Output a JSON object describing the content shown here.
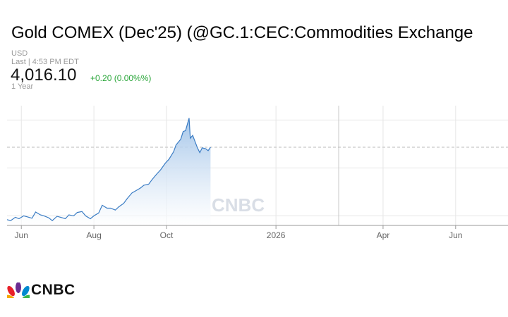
{
  "header": {
    "title": "Gold COMEX (Dec'25) (@GC.1:CEC:Commodities Exchange",
    "currency": "USD",
    "last_time": "Last | 4:53 PM EDT",
    "price": "4,016.10",
    "change": "+0.20 (0.00%%)",
    "range": "1 Year"
  },
  "colors": {
    "line": "#3a7cc4",
    "fill_top": "#9fc2e8",
    "change": "#2aa63a",
    "grid": "#e6e6e6"
  },
  "watermark": {
    "text": "CNBC"
  },
  "logo": {
    "icon": "peacock-icon",
    "text": "CNBC"
  },
  "chart_data": {
    "type": "area",
    "title": "",
    "xlabel": "",
    "ylabel": "",
    "x_tick_labels": [
      "Jun",
      "Aug",
      "Oct",
      "2026",
      "Apr",
      "Jun"
    ],
    "x_tick_dates": [
      "2025-06-01",
      "2025-08-01",
      "2025-10-01",
      "2026-01-01",
      "2026-04-01",
      "2026-06-01"
    ],
    "xlim": [
      "2025-05-20",
      "2026-07-15"
    ],
    "ylim": [
      3200,
      4450
    ],
    "grid": true,
    "y_axis_labels_shown": false,
    "previous_close_line": 4016,
    "series": [
      {
        "x": [
          "2025-05-20",
          "2025-05-23",
          "2025-05-27",
          "2025-05-30",
          "2025-06-03",
          "2025-06-06",
          "2025-06-10",
          "2025-06-13",
          "2025-06-17",
          "2025-06-20",
          "2025-06-24",
          "2025-06-27",
          "2025-07-01",
          "2025-07-04",
          "2025-07-08",
          "2025-07-11",
          "2025-07-15",
          "2025-07-18",
          "2025-07-22",
          "2025-07-25",
          "2025-07-29",
          "2025-08-01",
          "2025-08-05",
          "2025-08-08",
          "2025-08-12",
          "2025-08-15",
          "2025-08-19",
          "2025-08-22",
          "2025-08-26",
          "2025-08-29",
          "2025-09-02",
          "2025-09-05",
          "2025-09-09",
          "2025-09-12",
          "2025-09-16",
          "2025-09-19",
          "2025-09-23",
          "2025-09-26",
          "2025-09-30",
          "2025-10-03",
          "2025-10-07",
          "2025-10-09",
          "2025-10-13",
          "2025-10-15",
          "2025-10-17",
          "2025-10-20",
          "2025-10-21",
          "2025-10-23",
          "2025-10-27",
          "2025-10-29",
          "2025-10-31",
          "2025-11-03",
          "2025-11-05",
          "2025-11-07"
        ],
        "values": [
          3260,
          3250,
          3285,
          3270,
          3300,
          3290,
          3275,
          3340,
          3310,
          3300,
          3280,
          3250,
          3295,
          3285,
          3270,
          3310,
          3300,
          3335,
          3345,
          3300,
          3270,
          3300,
          3330,
          3410,
          3380,
          3380,
          3360,
          3395,
          3430,
          3480,
          3540,
          3560,
          3590,
          3620,
          3630,
          3680,
          3740,
          3780,
          3850,
          3890,
          3970,
          4040,
          4100,
          4180,
          4190,
          4320,
          4110,
          4140,
          4010,
          3960,
          4010,
          4000,
          3980,
          4016
        ]
      }
    ]
  }
}
